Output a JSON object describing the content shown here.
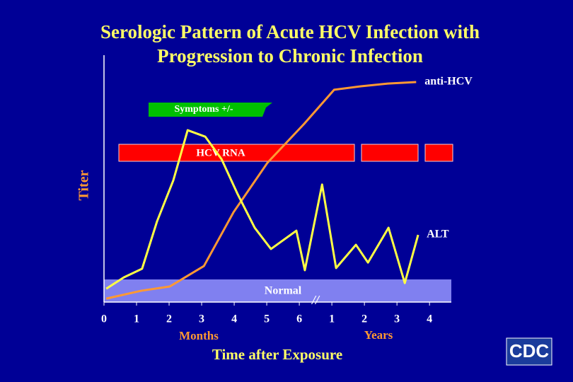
{
  "chart_data": {
    "type": "line",
    "title": [
      "Serologic Pattern of Acute HCV Infection with",
      "Progression to Chronic Infection"
    ],
    "y_label": "Titer",
    "x_label": "Time after Exposure",
    "x_unit_labels": [
      "Months",
      "Years"
    ],
    "annotations": {
      "symptoms": "Symptoms +/-",
      "hcv_rna": "HCV RNA",
      "normal": "Normal"
    },
    "xlim": [
      0,
      10.67
    ],
    "ylim": [
      0,
      100
    ],
    "xticks": [
      0,
      1,
      2,
      3,
      4,
      5,
      6,
      {
        "value": 7,
        "label": "1"
      },
      {
        "value": 8,
        "label": "2"
      },
      {
        "value": 9,
        "label": "3"
      },
      {
        "value": 10,
        "label": "4"
      }
    ],
    "series": [
      {
        "name": "anti-HCV",
        "color": "#ff9933",
        "x": [
          0.07,
          1.15,
          2.02,
          3.07,
          3.98,
          5.02,
          6.15,
          7.07,
          7.89,
          8.72,
          9.59
        ],
        "values": [
          1.4,
          4.6,
          6.3,
          14.6,
          36.4,
          56.4,
          72.2,
          86.0,
          87.4,
          88.5,
          89.1
        ]
      },
      {
        "name": "ALT",
        "color": "#ffff44",
        "x": [
          0.07,
          0.61,
          1.17,
          1.63,
          2.13,
          2.57,
          3.11,
          3.61,
          4.11,
          4.63,
          5.13,
          5.91,
          6.17,
          6.7,
          7.13,
          7.74,
          8.11,
          8.74,
          9.24,
          9.65
        ],
        "values": [
          5.4,
          10.0,
          13.5,
          32.7,
          49.3,
          69.6,
          67.0,
          57.9,
          43.6,
          30.1,
          21.5,
          28.9,
          12.9,
          47.6,
          13.8,
          23.2,
          16.0,
          30.1,
          7.7,
          27.2
        ]
      }
    ]
  },
  "logo": "CDC"
}
